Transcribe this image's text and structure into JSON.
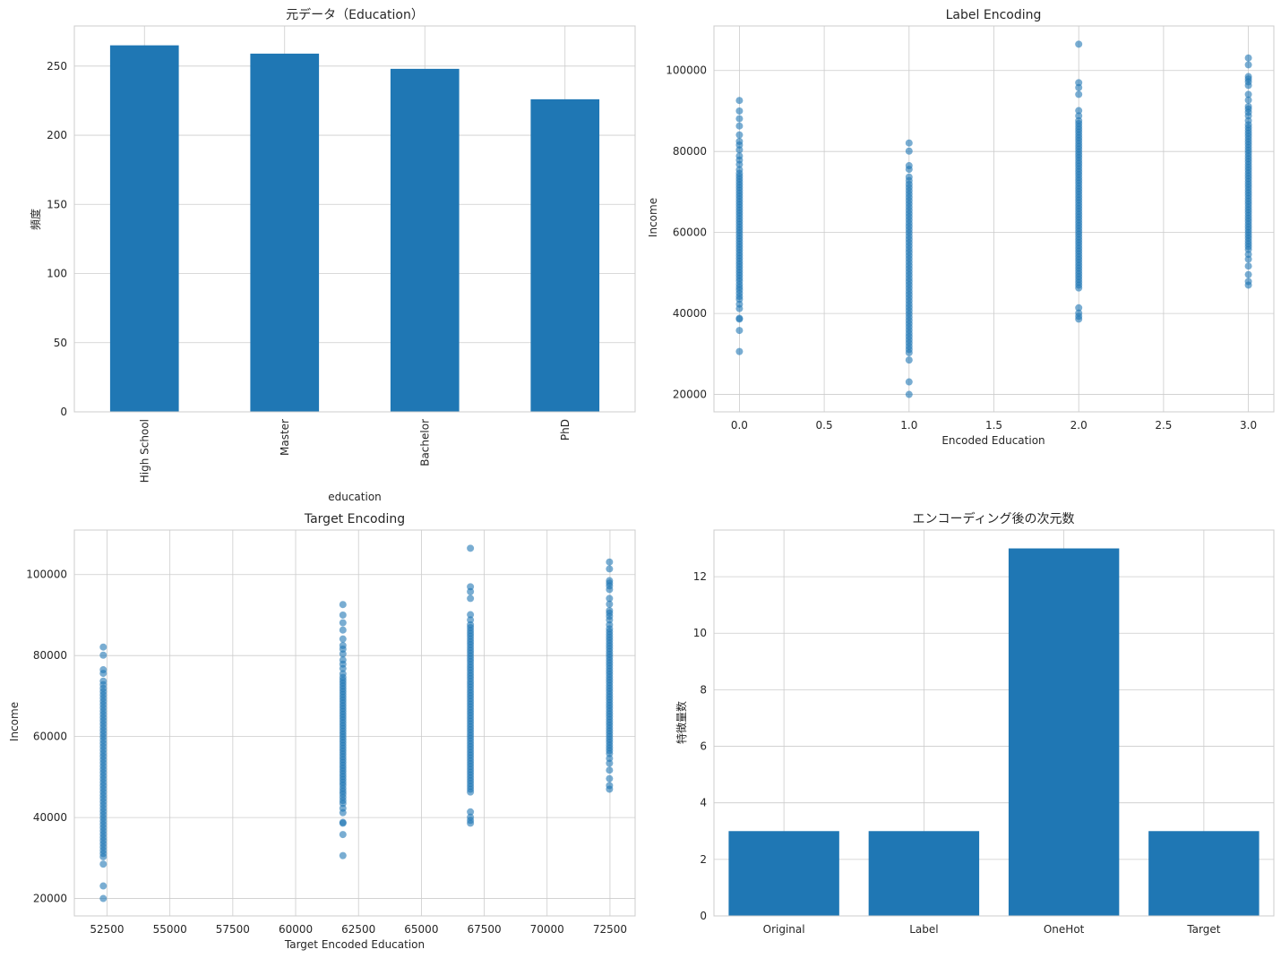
{
  "chart_data": [
    {
      "type": "bar",
      "title": "元データ（Education）",
      "xlabel": "education",
      "ylabel": "頻度",
      "categories": [
        "High School",
        "Master",
        "Bachelor",
        "PhD"
      ],
      "values": [
        265,
        259,
        248,
        226
      ],
      "ylim": [
        0,
        279
      ],
      "yticks": [
        0,
        50,
        100,
        150,
        200,
        250
      ],
      "x_tick_rotation": "vertical",
      "color": "#1f77b4",
      "grid": true
    },
    {
      "type": "scatter",
      "title": "Label Encoding",
      "xlabel": "Encoded Education",
      "ylabel": "Income",
      "xlim": [
        -0.15,
        3.15
      ],
      "ylim": [
        15700,
        111000
      ],
      "xticks": [
        "0.0",
        "0.5",
        "1.0",
        "1.5",
        "2.0",
        "2.5",
        "3.0"
      ],
      "yticks": [
        "20000",
        "40000",
        "60000",
        "80000",
        "100000"
      ],
      "color": "#1f77b4",
      "alpha": 0.6,
      "grid": true,
      "groups": [
        {
          "x": 0,
          "y": [
            30600,
            35800,
            38600,
            38800,
            41200,
            42300,
            43500,
            44200,
            45000,
            45800,
            46500,
            47200,
            48000,
            48700,
            49400,
            50100,
            50800,
            51500,
            52200,
            52900,
            53600,
            54300,
            55000,
            55700,
            56400,
            57100,
            57800,
            58500,
            59200,
            59900,
            60600,
            61300,
            62000,
            62700,
            63400,
            64100,
            64800,
            65500,
            66200,
            66900,
            67600,
            68300,
            69000,
            69700,
            70400,
            71100,
            71800,
            72500,
            73200,
            73900,
            74600,
            75500,
            76800,
            77900,
            78900,
            80400,
            81600,
            82500,
            84100,
            86300,
            88100,
            90000,
            92600
          ]
        },
        {
          "x": 1,
          "y": [
            20000,
            23100,
            28500,
            30300,
            31100,
            31900,
            32700,
            33500,
            34300,
            35100,
            35900,
            36700,
            37500,
            38300,
            39100,
            39900,
            40700,
            41500,
            42300,
            43100,
            43900,
            44700,
            45500,
            46300,
            47100,
            47900,
            48700,
            49500,
            50300,
            51100,
            51900,
            52700,
            53500,
            54300,
            55100,
            55900,
            56700,
            57500,
            58300,
            59100,
            59900,
            60700,
            61500,
            62300,
            63100,
            63900,
            64700,
            65500,
            66300,
            67100,
            67900,
            68700,
            69500,
            70300,
            71100,
            71900,
            72800,
            73700,
            75600,
            76500,
            80100,
            82100
          ]
        },
        {
          "x": 2,
          "y": [
            38600,
            39300,
            40100,
            41400,
            46300,
            47000,
            47700,
            48400,
            49100,
            49800,
            50500,
            51200,
            51900,
            52600,
            53300,
            54000,
            54700,
            55400,
            56100,
            56800,
            57500,
            58200,
            58900,
            59600,
            60300,
            61000,
            61700,
            62400,
            63100,
            63800,
            64500,
            65200,
            65900,
            66600,
            67300,
            68000,
            68700,
            69400,
            70100,
            70800,
            71500,
            72200,
            72900,
            73600,
            74300,
            75000,
            75700,
            76400,
            77100,
            77800,
            78500,
            79200,
            79900,
            80600,
            81300,
            82000,
            82700,
            83400,
            84100,
            84800,
            85500,
            86200,
            86900,
            87600,
            88800,
            90100,
            94100,
            95800,
            97000,
            106500
          ]
        },
        {
          "x": 3,
          "y": [
            47000,
            47900,
            49600,
            51700,
            53400,
            54600,
            55800,
            56500,
            57200,
            57900,
            58600,
            59300,
            60000,
            60700,
            61400,
            62100,
            62800,
            63500,
            64200,
            64900,
            65600,
            66300,
            67000,
            67700,
            68400,
            69100,
            69800,
            70500,
            71200,
            71900,
            72600,
            73300,
            74000,
            74700,
            75400,
            76100,
            76800,
            77500,
            78200,
            78900,
            79600,
            80300,
            81000,
            81700,
            82400,
            83100,
            83800,
            84500,
            85200,
            85900,
            86600,
            87600,
            88800,
            89700,
            90500,
            91100,
            92700,
            94100,
            96300,
            97200,
            97900,
            98500,
            101400,
            103100
          ]
        }
      ]
    },
    {
      "type": "scatter",
      "title": "Target Encoding",
      "xlabel": "Target Encoded Education",
      "ylabel": "Income",
      "xlim": [
        51200,
        73500
      ],
      "ylim": [
        15700,
        111000
      ],
      "xticks": [
        "52500",
        "55000",
        "57500",
        "60000",
        "62500",
        "65000",
        "67500",
        "70000",
        "72500"
      ],
      "yticks": [
        "20000",
        "40000",
        "60000",
        "80000",
        "100000"
      ],
      "color": "#1f77b4",
      "alpha": 0.6,
      "grid": true,
      "group_x": [
        52350,
        61880,
        66950,
        72480
      ],
      "group_source_index": [
        1,
        0,
        2,
        3
      ]
    },
    {
      "type": "bar",
      "title": "エンコーディング後の次元数",
      "xlabel": "",
      "ylabel": "特徴量数",
      "categories": [
        "Original",
        "Label",
        "OneHot",
        "Target"
      ],
      "values": [
        3,
        3,
        13,
        3
      ],
      "ylim": [
        0,
        13.65
      ],
      "yticks": [
        0,
        2,
        4,
        6,
        8,
        10,
        12
      ],
      "color": "#1f77b4",
      "grid": true
    }
  ]
}
